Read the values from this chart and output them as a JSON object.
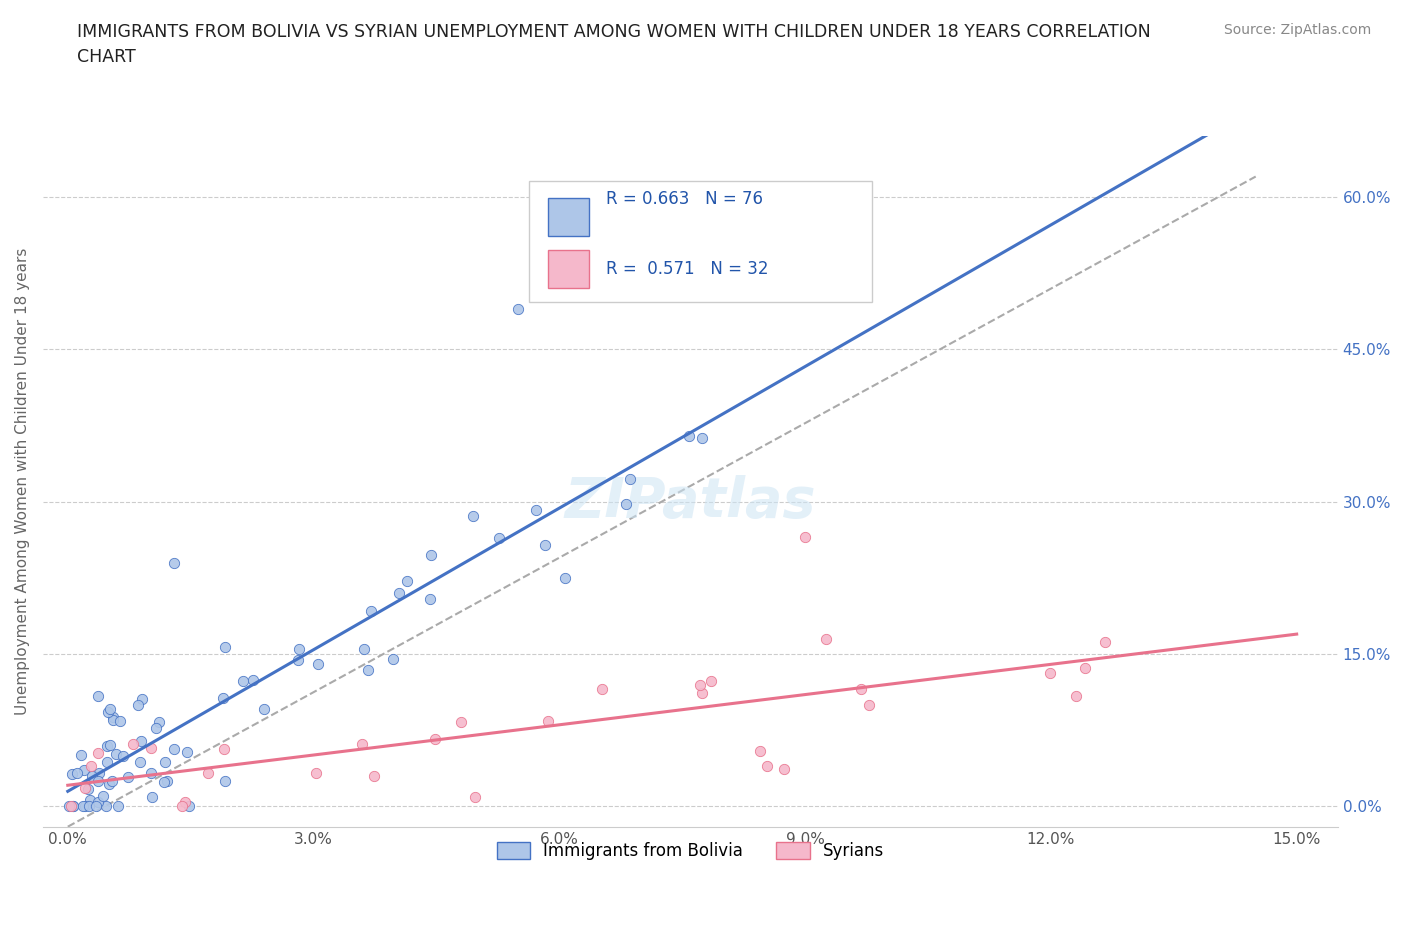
{
  "title": "IMMIGRANTS FROM BOLIVIA VS SYRIAN UNEMPLOYMENT AMONG WOMEN WITH CHILDREN UNDER 18 YEARS CORRELATION\nCHART",
  "source": "Source: ZipAtlas.com",
  "ylabel_label": "Unemployment Among Women with Children Under 18 years",
  "legend_label1": "Immigrants from Bolivia",
  "legend_label2": "Syrians",
  "R1": 0.663,
  "N1": 76,
  "R2": 0.571,
  "N2": 32,
  "color1": "#aec6e8",
  "color2": "#f5b8cb",
  "line_color1": "#4472c4",
  "line_color2": "#e8728c",
  "trend_color": "#aaaaaa",
  "watermark": "ZIPatlas",
  "xmax": 0.15,
  "ymax": 0.65,
  "yticks": [
    0.0,
    0.15,
    0.3,
    0.45,
    0.6
  ],
  "xticks": [
    0.0,
    0.03,
    0.06,
    0.09,
    0.12,
    0.15
  ]
}
